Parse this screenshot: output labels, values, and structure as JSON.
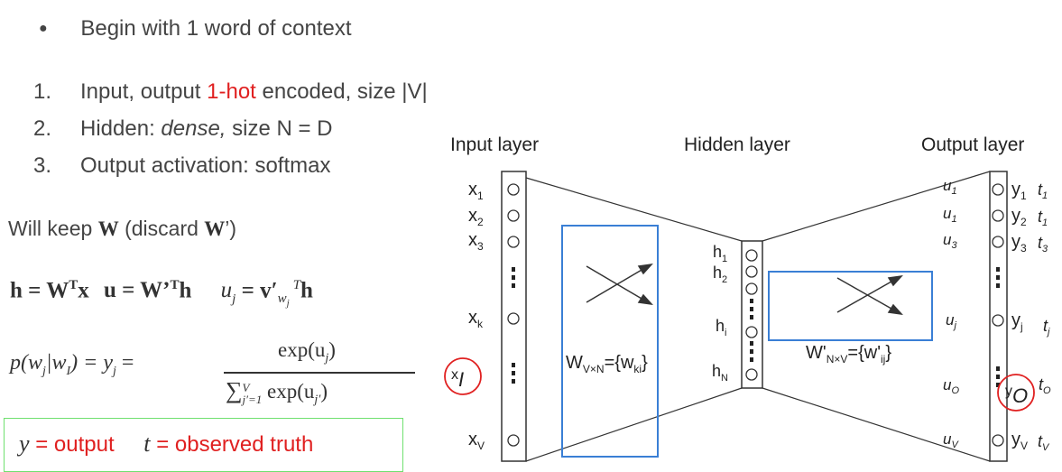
{
  "bullet": {
    "symbol": "●",
    "text": "Begin with 1 word of context"
  },
  "numbered": [
    {
      "num": "1.",
      "pre": "Input, output ",
      "highlight": "1-hot",
      "post": " encoded, size |V|"
    },
    {
      "num": "2.",
      "pre": "Hidden: ",
      "em": "dense,",
      "post": " size N = D"
    },
    {
      "num": "3.",
      "text": "Output activation: softmax"
    }
  ],
  "keep_text": {
    "pre": "Will keep ",
    "w": "W",
    "mid": " (discard ",
    "w2": "W",
    "post": "’)"
  },
  "eq1": {
    "h": "h = W",
    "hT": "T",
    "hx": "x",
    "u": "u = W’",
    "uT": "T",
    "uh": "h",
    "uj": "u",
    "uj_sub": "j",
    "v": " = v′",
    "v_sub": "w",
    "v_subsub": "j",
    "vT": "T",
    "vh": "h"
  },
  "eq2": {
    "lhs": "p(w",
    "lhs_sub": "j",
    "lhs_mid": "|w",
    "lhs_sub2": "I",
    "lhs_end": ") = y",
    "lhs_sub3": "j",
    "eq": " =",
    "num": "exp(u",
    "num_sub": "j",
    "num_end": ")",
    "den_sum": "∑",
    "den_top": "V",
    "den_bot": "j′=1",
    "den": " exp(u",
    "den_sub": "j′",
    "den_end": ")"
  },
  "legend": {
    "y": "y",
    "y_text": " = output",
    "t": "t",
    "t_text": " = observed truth"
  },
  "diagram": {
    "layers": {
      "input": "Input layer",
      "hidden": "Hidden layer",
      "output": "Output layer"
    },
    "inputs": [
      {
        "b": "x",
        "s": "1"
      },
      {
        "b": "x",
        "s": "2"
      },
      {
        "b": "x",
        "s": "3"
      },
      {
        "b": "x",
        "s": "k"
      },
      {
        "b": "x",
        "s": "V"
      }
    ],
    "input_circled": {
      "b": "x",
      "s": "I"
    },
    "hidden": [
      {
        "b": "h",
        "s": "1"
      },
      {
        "b": "h",
        "s": "2"
      },
      {
        "b": "h",
        "s": "i"
      },
      {
        "b": "h",
        "s": "N"
      }
    ],
    "u": [
      {
        "b": "u",
        "s": "1"
      },
      {
        "b": "u",
        "s": "1"
      },
      {
        "b": "u",
        "s": "3"
      },
      {
        "b": "u",
        "s": "j"
      },
      {
        "b": "u",
        "s": "O"
      },
      {
        "b": "u",
        "s": "V"
      }
    ],
    "y": [
      {
        "b": "y",
        "s": "1"
      },
      {
        "b": "y",
        "s": "2"
      },
      {
        "b": "y",
        "s": "3"
      },
      {
        "b": "y",
        "s": "j"
      },
      {
        "b": "y",
        "s": "V"
      }
    ],
    "y_circled": {
      "b": "y",
      "s": "O"
    },
    "t": [
      {
        "b": "t",
        "s": "1"
      },
      {
        "b": "t",
        "s": "1"
      },
      {
        "b": "t",
        "s": "3"
      },
      {
        "b": "t",
        "s": "j"
      },
      {
        "b": "t",
        "s": "O"
      },
      {
        "b": "t",
        "s": "V"
      }
    ],
    "w1": {
      "b": "W",
      "s": "V×N",
      "eq": "={w",
      "s2": "ki",
      "end": "}"
    },
    "w2": {
      "b": "W'",
      "s": "N×V",
      "eq": "={w'",
      "s2": "ij",
      "end": "}"
    }
  },
  "colors": {
    "red": "#e02020",
    "blue": "#3a7fd5",
    "green": "#6fe06f",
    "text": "#444444"
  }
}
